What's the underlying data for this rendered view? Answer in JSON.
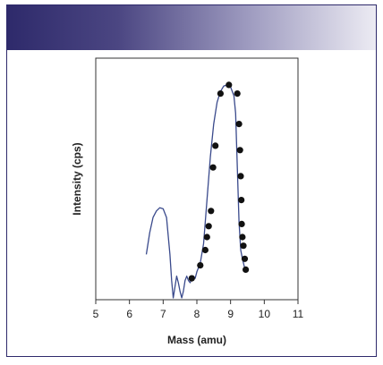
{
  "chart_data": {
    "type": "line",
    "title": "",
    "xlabel": "Mass (amu)",
    "ylabel": "Intensity (cps)",
    "xlim": [
      5,
      11
    ],
    "ylim": [
      0,
      100
    ],
    "x_ticks": [
      "5",
      "6",
      "7",
      "8",
      "9",
      "10",
      "11"
    ],
    "grid": false,
    "legend": "none",
    "series": [
      {
        "style": "line",
        "color": "#3a4a8c",
        "x": [
          6.5,
          6.6,
          6.7,
          6.8,
          6.9,
          7.0,
          7.1,
          7.2,
          7.25,
          7.3,
          7.35,
          7.4,
          7.45,
          7.5,
          7.55,
          7.6,
          7.65,
          7.7,
          7.75,
          7.8,
          7.85,
          7.9,
          7.95,
          8.0,
          8.05,
          8.1,
          8.2,
          8.3,
          8.4,
          8.5,
          8.6,
          8.7,
          8.8,
          8.9,
          9.0,
          9.1,
          9.15,
          9.2,
          9.25,
          9.3,
          9.35,
          9.4,
          9.45
        ],
        "y": [
          20,
          30,
          37,
          40,
          41.5,
          41,
          37,
          20,
          8,
          0,
          5,
          10,
          7,
          3,
          0,
          3,
          8,
          10,
          8,
          7,
          9,
          10,
          9,
          12,
          14,
          16,
          25,
          45,
          65,
          80,
          90,
          95,
          97.5,
          98,
          97,
          93,
          85,
          60,
          35,
          22,
          18,
          15,
          12
        ]
      },
      {
        "style": "scatter",
        "color": "#111111",
        "x": [
          7.85,
          8.1,
          8.25,
          8.3,
          8.35,
          8.42,
          8.48,
          8.55,
          8.7,
          8.95,
          9.2,
          9.25,
          9.28,
          9.3,
          9.32,
          9.33,
          9.35,
          9.38,
          9.42,
          9.45
        ],
        "y": [
          9,
          15,
          22,
          28,
          33,
          40,
          60,
          70,
          94,
          98,
          94,
          80,
          68,
          56,
          45,
          34,
          28,
          24,
          18,
          13
        ]
      }
    ]
  }
}
